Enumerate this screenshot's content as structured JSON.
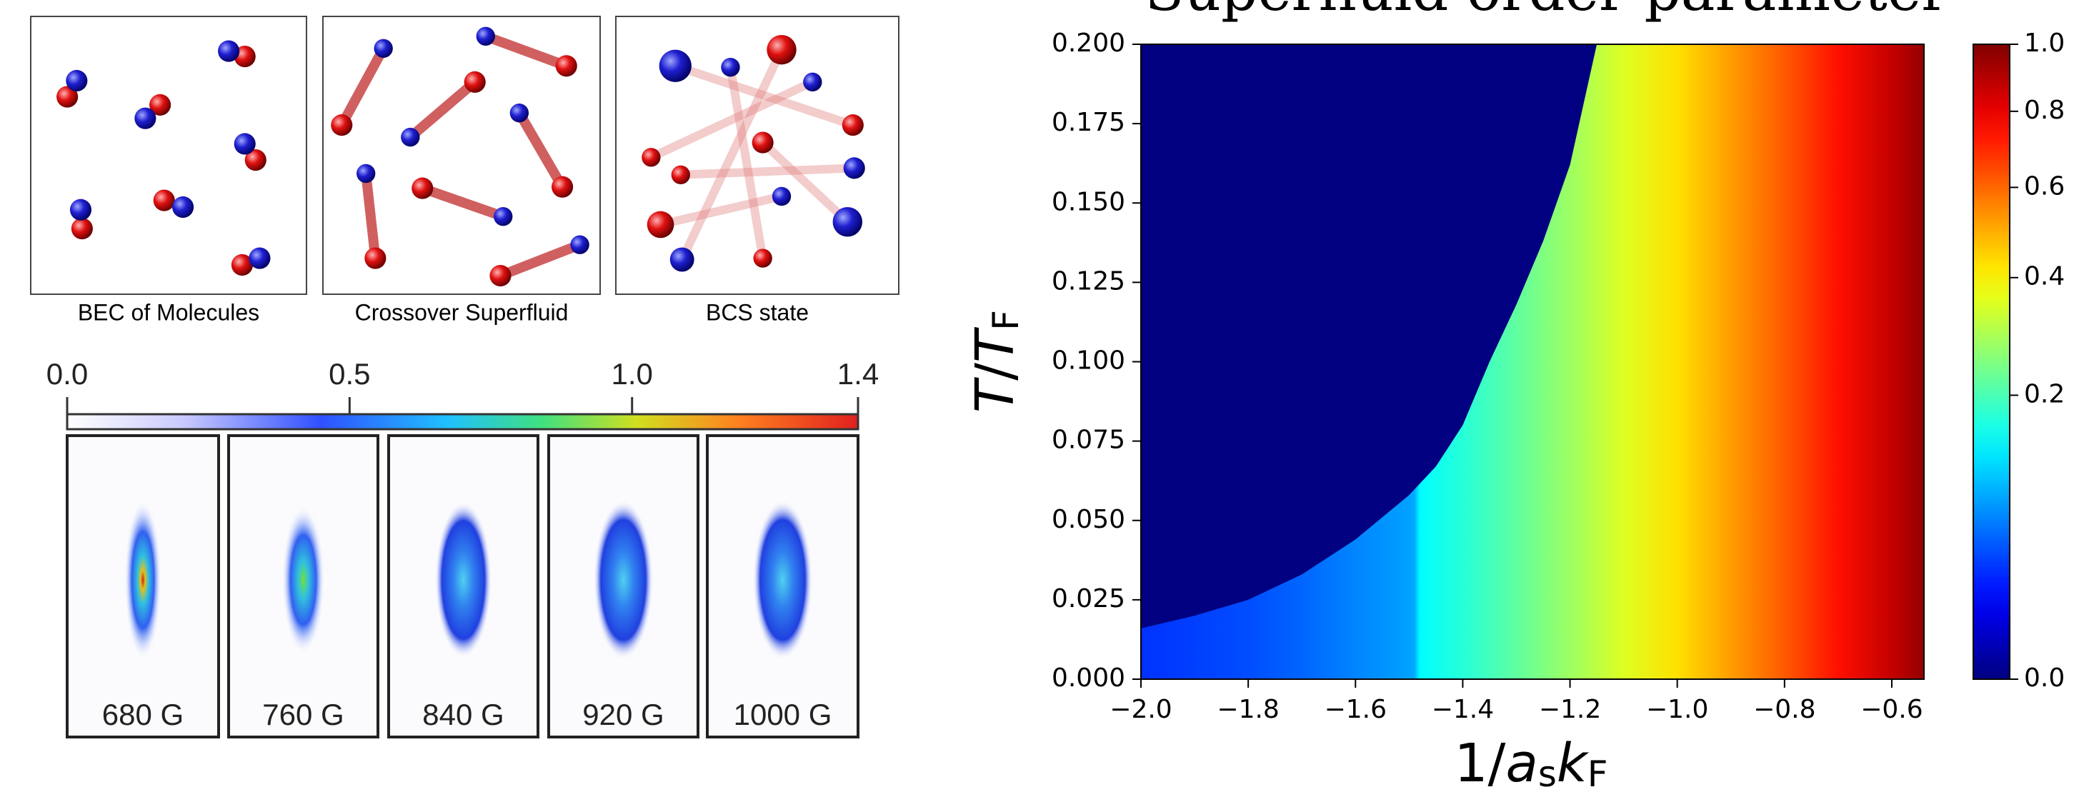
{
  "panels": [
    {
      "label": "BEC of Molecules"
    },
    {
      "label": "Crossover Superfluid"
    },
    {
      "label": "BCS state"
    }
  ],
  "images": {
    "colorbar_lim": [
      0,
      1.4
    ],
    "colorbar_ticks": [
      {
        "value": 0,
        "label": "0.0"
      },
      {
        "value": 0.5,
        "label": "0.5"
      },
      {
        "value": 1,
        "label": "1.0"
      },
      {
        "value": 1.4,
        "label": "1.4"
      }
    ],
    "labels": [
      "680 G",
      "760 G",
      "840 G",
      "920 G",
      "1000 G"
    ]
  },
  "chart_data": {
    "type": "heatmap",
    "title": "Superfluid order parameter",
    "xlabel": [
      "1/",
      "a",
      "s",
      "k",
      "F"
    ],
    "ylabel": [
      "T",
      "/",
      "T",
      "F"
    ],
    "xlim": [
      -2.0,
      -0.54
    ],
    "xticks": [
      {
        "value": -2.0,
        "label": "−2.0"
      },
      {
        "value": -1.8,
        "label": "−1.8"
      },
      {
        "value": -1.6,
        "label": "−1.6"
      },
      {
        "value": -1.4,
        "label": "−1.4"
      },
      {
        "value": -1.2,
        "label": "−1.2"
      },
      {
        "value": -1.0,
        "label": "−1.0"
      },
      {
        "value": -0.8,
        "label": "−0.8"
      },
      {
        "value": -0.6,
        "label": "−0.6"
      }
    ],
    "ylim": [
      0,
      0.2
    ],
    "yticks": [
      {
        "value": 0,
        "label": "0.000"
      },
      {
        "value": 0.025,
        "label": "0.025"
      },
      {
        "value": 0.05,
        "label": "0.050"
      },
      {
        "value": 0.075,
        "label": "0.075"
      },
      {
        "value": 0.1,
        "label": "0.100"
      },
      {
        "value": 0.125,
        "label": "0.125"
      },
      {
        "value": 0.15,
        "label": "0.150"
      },
      {
        "value": 0.175,
        "label": "0.175"
      },
      {
        "value": 0.2,
        "label": "0.200"
      }
    ],
    "gap": {
      "x": [
        -2.0,
        -1.9,
        -1.8,
        -1.7,
        -1.6,
        -1.5,
        -1.49,
        -1.48,
        -1.4,
        -1.3,
        -1.2,
        -1.1,
        -1.0,
        -0.9,
        -0.8,
        -0.7,
        -0.6,
        -0.54
      ],
      "values": [
        0.03,
        0.035,
        0.04,
        0.05,
        0.065,
        0.08,
        0.085,
        0.14,
        0.17,
        0.22,
        0.28,
        0.35,
        0.43,
        0.52,
        0.62,
        0.74,
        0.87,
        0.96
      ]
    },
    "critical_line": {
      "x": [
        -2.0,
        -1.9,
        -1.8,
        -1.7,
        -1.6,
        -1.5,
        -1.45,
        -1.4,
        -1.35,
        -1.3,
        -1.25,
        -1.2,
        -1.15
      ],
      "y": [
        0.016,
        0.02,
        0.025,
        0.033,
        0.044,
        0.058,
        0.067,
        0.08,
        0.1,
        0.118,
        0.138,
        0.162,
        0.2
      ]
    },
    "colorbar": {
      "lim": [
        0,
        1
      ],
      "scale": "sqrt",
      "colormap": "jet",
      "ticks": [
        {
          "value": 0,
          "label": "0.0"
        },
        {
          "value": 0.2,
          "label": "0.2"
        },
        {
          "value": 0.4,
          "label": "0.4"
        },
        {
          "value": 0.6,
          "label": "0.6"
        },
        {
          "value": 0.8,
          "label": "0.8"
        },
        {
          "value": 1,
          "label": "1.0"
        }
      ]
    }
  }
}
